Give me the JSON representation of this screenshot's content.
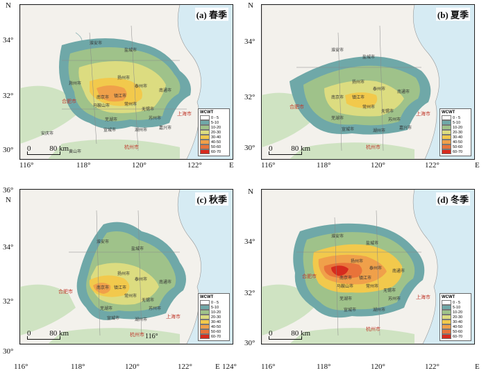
{
  "legend": {
    "title": "WCWT",
    "classes": [
      {
        "label": "0 - 5",
        "color": "#ffffff"
      },
      {
        "label": "5-10",
        "color": "#6fa8a8"
      },
      {
        "label": "10-20",
        "color": "#9fc28a"
      },
      {
        "label": "20-30",
        "color": "#dcdc80"
      },
      {
        "label": "30-40",
        "color": "#f2c94c"
      },
      {
        "label": "40-50",
        "color": "#f0a04a"
      },
      {
        "label": "50-60",
        "color": "#e8733a"
      },
      {
        "label": "60-70",
        "color": "#d62b1e"
      }
    ]
  },
  "scale": {
    "zero": "0",
    "distance": "80 km"
  },
  "axes": {
    "x_ticks": [
      "116°",
      "118°",
      "120°",
      "122°"
    ],
    "x_end": "E",
    "y_ticks": [
      "34°",
      "32°",
      "30°"
    ],
    "y_ticks_c": [
      "36°",
      "34°",
      "32°",
      "30°"
    ],
    "y_end": "N",
    "extra_c": [
      "116°",
      "124°"
    ]
  },
  "panels": [
    {
      "id": "a",
      "label": "(a) 春季"
    },
    {
      "id": "b",
      "label": "(b) 夏季"
    },
    {
      "id": "c",
      "label": "(c) 秋季"
    },
    {
      "id": "d",
      "label": "(d) 冬季"
    }
  ],
  "cities": {
    "a": [
      {
        "name": "合肥市",
        "major": true
      },
      {
        "name": "南京市"
      },
      {
        "name": "镇江市"
      },
      {
        "name": "扬州市"
      },
      {
        "name": "泰州市"
      },
      {
        "name": "南通市"
      },
      {
        "name": "马鞍山市"
      },
      {
        "name": "常州市"
      },
      {
        "name": "无锡市"
      },
      {
        "name": "苏州市"
      },
      {
        "name": "芜湖市"
      },
      {
        "name": "宣城市"
      },
      {
        "name": "湖州市"
      },
      {
        "name": "嘉兴市"
      },
      {
        "name": "上海市",
        "major": true
      },
      {
        "name": "杭州市",
        "major": true
      },
      {
        "name": "盐城市"
      },
      {
        "name": "淮安市"
      },
      {
        "name": "滁州市"
      },
      {
        "name": "安庆市"
      },
      {
        "name": "黄山市"
      }
    ],
    "b": [
      {
        "name": "南京市"
      },
      {
        "name": "镇江市"
      },
      {
        "name": "扬州市"
      },
      {
        "name": "泰州市"
      },
      {
        "name": "南通市"
      },
      {
        "name": "常州市"
      },
      {
        "name": "无锡市"
      },
      {
        "name": "苏州市"
      },
      {
        "name": "芜湖市"
      },
      {
        "name": "宣城市"
      },
      {
        "name": "湖州市"
      },
      {
        "name": "嘉兴市"
      },
      {
        "name": "上海市",
        "major": true
      },
      {
        "name": "杭州市",
        "major": true
      },
      {
        "name": "合肥市",
        "major": true
      },
      {
        "name": "盐城市"
      },
      {
        "name": "淮安市"
      }
    ],
    "c": [
      {
        "name": "合肥市",
        "major": true
      },
      {
        "name": "南京市"
      },
      {
        "name": "镇江市"
      },
      {
        "name": "扬州市"
      },
      {
        "name": "泰州市"
      },
      {
        "name": "南通市"
      },
      {
        "name": "常州市"
      },
      {
        "name": "无锡市"
      },
      {
        "name": "苏州市"
      },
      {
        "name": "芜湖市"
      },
      {
        "name": "宣城市"
      },
      {
        "name": "湖州市"
      },
      {
        "name": "上海市",
        "major": true
      },
      {
        "name": "杭州市",
        "major": true
      },
      {
        "name": "盐城市"
      },
      {
        "name": "淮安市"
      }
    ],
    "d": [
      {
        "name": "合肥市",
        "major": true
      },
      {
        "name": "南京市"
      },
      {
        "name": "镇江市"
      },
      {
        "name": "扬州市"
      },
      {
        "name": "泰州市"
      },
      {
        "name": "南通市"
      },
      {
        "name": "马鞍山市"
      },
      {
        "name": "常州市"
      },
      {
        "name": "无锡市"
      },
      {
        "name": "苏州市"
      },
      {
        "name": "芜湖市"
      },
      {
        "name": "宣城市"
      },
      {
        "name": "湖州市"
      },
      {
        "name": "上海市",
        "major": true
      },
      {
        "name": "杭州市",
        "major": true
      },
      {
        "name": "盐城市"
      },
      {
        "name": "淮安市"
      }
    ]
  }
}
